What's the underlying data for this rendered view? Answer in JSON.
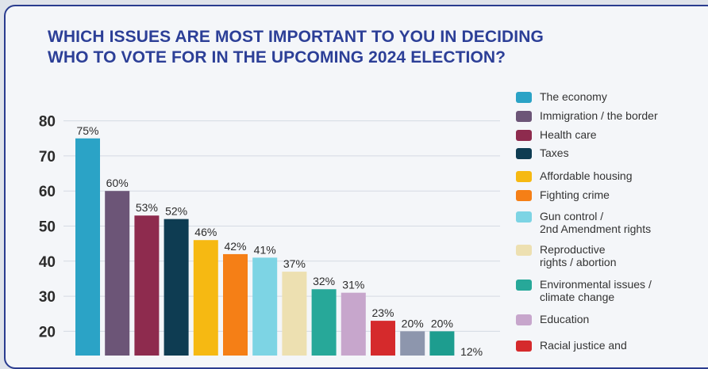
{
  "chart_data": {
    "type": "bar",
    "title": "WHICH ISSUES ARE MOST IMPORTANT TO YOU IN DECIDING WHO TO VOTE FOR IN THE UPCOMING 2024 ELECTION?",
    "title_lines": [
      "WHICH ISSUES ARE MOST IMPORTANT TO YOU IN DECIDING",
      "WHO TO VOTE FOR IN THE UPCOMING 2024 ELECTION?"
    ],
    "categories": [
      "The economy",
      "Immigration / the border",
      "Health care",
      "Taxes",
      "Affordable housing",
      "Fighting crime",
      "Gun control /\n2nd Amendment rights",
      "Reproductive\nrights / abortion",
      "Environmental issues /\nclimate change",
      "Education",
      "Racial justice and",
      "",
      "",
      ""
    ],
    "values": [
      75,
      60,
      53,
      52,
      46,
      42,
      41,
      37,
      32,
      31,
      23,
      20,
      20,
      12
    ],
    "value_labels": [
      "75%",
      "60%",
      "53%",
      "52%",
      "46%",
      "42%",
      "41%",
      "37%",
      "32%",
      "31%",
      "23%",
      "20%",
      "20%",
      "12%"
    ],
    "colors": [
      "#2ba3c6",
      "#6c5577",
      "#8e2b4e",
      "#0e3c52",
      "#f6b912",
      "#f57f16",
      "#7dd4e4",
      "#ede0b1",
      "#27a899",
      "#c7a6cc",
      "#d52a2c",
      "#8d96ad",
      "#1d9d8f",
      "#cfd3db"
    ],
    "yticks": [
      80,
      70,
      60,
      50,
      40,
      30,
      20
    ],
    "ylim": [
      0,
      80
    ],
    "grid": true,
    "legend_position": "right",
    "legend_count": 11
  }
}
